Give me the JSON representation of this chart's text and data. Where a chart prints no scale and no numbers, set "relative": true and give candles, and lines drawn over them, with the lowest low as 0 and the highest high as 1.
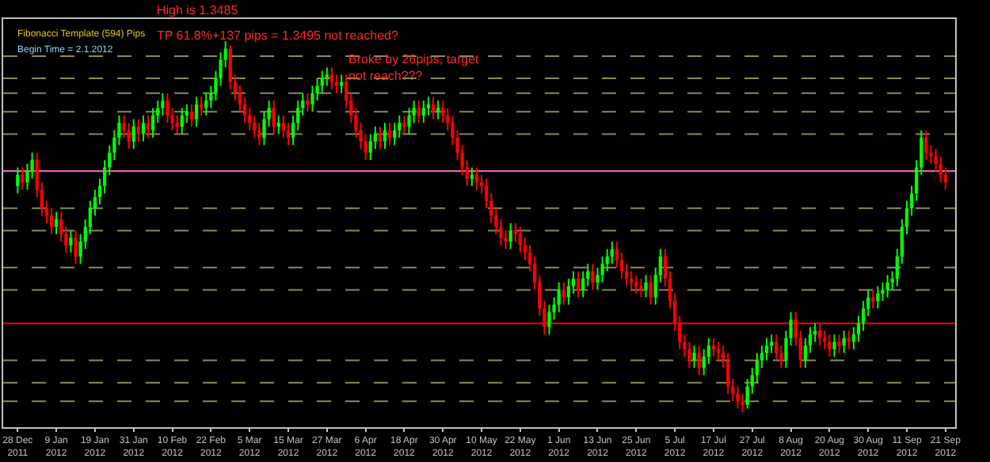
{
  "chart_data": {
    "type": "candlestick",
    "relative": true,
    "categories": [
      "28 Dec 2011",
      null,
      null,
      null,
      null,
      null,
      null,
      null,
      "9 Jan 2012",
      null,
      null,
      null,
      null,
      null,
      null,
      null,
      "19 Jan 2012",
      null,
      null,
      null,
      null,
      null,
      null,
      null,
      "31 Jan 2012",
      null,
      null,
      null,
      null,
      null,
      null,
      null,
      "10 Feb 2012",
      null,
      null,
      null,
      null,
      null,
      null,
      null,
      "22 Feb 2012",
      null,
      null,
      null,
      null,
      null,
      null,
      null,
      "5 Mar 2012",
      null,
      null,
      null,
      null,
      null,
      null,
      null,
      "15 Mar 2012",
      null,
      null,
      null,
      null,
      null,
      null,
      null,
      "27 Mar 2012",
      null,
      null,
      null,
      null,
      null,
      null,
      null,
      "6 Apr 2012",
      null,
      null,
      null,
      null,
      null,
      null,
      null,
      "18 Apr 2012",
      null,
      null,
      null,
      null,
      null,
      null,
      null,
      "30 Apr 2012",
      null,
      null,
      null,
      null,
      null,
      null,
      null,
      "10 May 2012",
      null,
      null,
      null,
      null,
      null,
      null,
      null,
      "22 May 2012",
      null,
      null,
      null,
      null,
      null,
      null,
      null,
      "1 Jun 2012",
      null,
      null,
      null,
      null,
      null,
      null,
      null,
      "13 Jun 2012",
      null,
      null,
      null,
      null,
      null,
      null,
      null,
      "25 Jun 2012",
      null,
      null,
      null,
      null,
      null,
      null,
      null,
      "5 Jul 2012",
      null,
      null,
      null,
      null,
      null,
      null,
      null,
      "17 Jul 2012",
      null,
      null,
      null,
      null,
      null,
      null,
      null,
      "27 Jul 2012",
      null,
      null,
      null,
      null,
      null,
      null,
      null,
      "8 Aug 2012",
      null,
      null,
      null,
      null,
      null,
      null,
      null,
      "20 Aug 2012",
      null,
      null,
      null,
      null,
      null,
      null,
      null,
      "30 Aug 2012",
      null,
      null,
      null,
      null,
      null,
      null,
      null,
      "11 Sep 2012",
      null,
      null,
      null,
      null,
      null,
      null,
      null,
      "21 Sep 2012"
    ],
    "ohlc": [
      [
        0.61,
        0.66,
        0.59,
        0.64
      ],
      [
        0.64,
        0.66,
        0.6,
        0.62
      ],
      [
        0.62,
        0.67,
        0.6,
        0.65
      ],
      [
        0.65,
        0.7,
        0.63,
        0.68
      ],
      [
        0.68,
        0.7,
        0.58,
        0.6
      ],
      [
        0.6,
        0.62,
        0.53,
        0.55
      ],
      [
        0.55,
        0.57,
        0.51,
        0.53
      ],
      [
        0.53,
        0.55,
        0.48,
        0.5
      ],
      [
        0.5,
        0.54,
        0.48,
        0.52
      ],
      [
        0.52,
        0.54,
        0.46,
        0.48
      ],
      [
        0.48,
        0.5,
        0.43,
        0.45
      ],
      [
        0.45,
        0.49,
        0.43,
        0.47
      ],
      [
        0.47,
        0.49,
        0.4,
        0.42
      ],
      [
        0.42,
        0.48,
        0.4,
        0.46
      ],
      [
        0.46,
        0.52,
        0.44,
        0.5
      ],
      [
        0.5,
        0.57,
        0.48,
        0.55
      ],
      [
        0.55,
        0.6,
        0.53,
        0.58
      ],
      [
        0.58,
        0.63,
        0.56,
        0.61
      ],
      [
        0.61,
        0.68,
        0.59,
        0.66
      ],
      [
        0.66,
        0.72,
        0.64,
        0.7
      ],
      [
        0.7,
        0.76,
        0.68,
        0.74
      ],
      [
        0.74,
        0.8,
        0.72,
        0.78
      ],
      [
        0.78,
        0.8,
        0.74,
        0.76
      ],
      [
        0.76,
        0.78,
        0.71,
        0.73
      ],
      [
        0.73,
        0.79,
        0.71,
        0.77
      ],
      [
        0.77,
        0.79,
        0.73,
        0.75
      ],
      [
        0.75,
        0.8,
        0.73,
        0.78
      ],
      [
        0.78,
        0.8,
        0.74,
        0.76
      ],
      [
        0.76,
        0.82,
        0.74,
        0.8
      ],
      [
        0.8,
        0.84,
        0.78,
        0.82
      ],
      [
        0.82,
        0.86,
        0.8,
        0.84
      ],
      [
        0.84,
        0.86,
        0.78,
        0.8
      ],
      [
        0.8,
        0.82,
        0.76,
        0.78
      ],
      [
        0.78,
        0.8,
        0.75,
        0.77
      ],
      [
        0.77,
        0.82,
        0.75,
        0.8
      ],
      [
        0.8,
        0.83,
        0.78,
        0.81
      ],
      [
        0.81,
        0.83,
        0.77,
        0.79
      ],
      [
        0.79,
        0.85,
        0.77,
        0.83
      ],
      [
        0.83,
        0.85,
        0.8,
        0.82
      ],
      [
        0.82,
        0.86,
        0.8,
        0.84
      ],
      [
        0.84,
        0.88,
        0.82,
        0.86
      ],
      [
        0.86,
        0.92,
        0.84,
        0.9
      ],
      [
        0.9,
        0.97,
        0.88,
        0.95
      ],
      [
        0.95,
        1,
        0.93,
        0.98
      ],
      [
        0.98,
        0.99,
        0.87,
        0.89
      ],
      [
        0.89,
        0.91,
        0.84,
        0.86
      ],
      [
        0.86,
        0.88,
        0.81,
        0.83
      ],
      [
        0.83,
        0.85,
        0.78,
        0.8
      ],
      [
        0.8,
        0.82,
        0.76,
        0.78
      ],
      [
        0.78,
        0.8,
        0.74,
        0.76
      ],
      [
        0.76,
        0.78,
        0.72,
        0.74
      ],
      [
        0.74,
        0.81,
        0.72,
        0.79
      ],
      [
        0.79,
        0.84,
        0.77,
        0.82
      ],
      [
        0.82,
        0.84,
        0.75,
        0.77
      ],
      [
        0.77,
        0.8,
        0.75,
        0.78
      ],
      [
        0.78,
        0.8,
        0.74,
        0.76
      ],
      [
        0.76,
        0.78,
        0.72,
        0.74
      ],
      [
        0.74,
        0.8,
        0.72,
        0.78
      ],
      [
        0.78,
        0.84,
        0.76,
        0.82
      ],
      [
        0.82,
        0.86,
        0.8,
        0.84
      ],
      [
        0.84,
        0.86,
        0.81,
        0.83
      ],
      [
        0.83,
        0.88,
        0.81,
        0.86
      ],
      [
        0.86,
        0.9,
        0.84,
        0.88
      ],
      [
        0.88,
        0.92,
        0.86,
        0.9
      ],
      [
        0.9,
        0.93,
        0.88,
        0.91
      ],
      [
        0.91,
        0.93,
        0.87,
        0.89
      ],
      [
        0.89,
        0.91,
        0.86,
        0.88
      ],
      [
        0.88,
        0.91,
        0.86,
        0.89
      ],
      [
        0.89,
        0.91,
        0.82,
        0.84
      ],
      [
        0.84,
        0.86,
        0.78,
        0.8
      ],
      [
        0.8,
        0.82,
        0.74,
        0.76
      ],
      [
        0.76,
        0.78,
        0.71,
        0.73
      ],
      [
        0.73,
        0.75,
        0.68,
        0.7
      ],
      [
        0.7,
        0.75,
        0.68,
        0.73
      ],
      [
        0.73,
        0.77,
        0.71,
        0.75
      ],
      [
        0.75,
        0.77,
        0.71,
        0.73
      ],
      [
        0.73,
        0.78,
        0.71,
        0.76
      ],
      [
        0.76,
        0.78,
        0.72,
        0.74
      ],
      [
        0.74,
        0.78,
        0.72,
        0.76
      ],
      [
        0.76,
        0.8,
        0.74,
        0.78
      ],
      [
        0.78,
        0.8,
        0.75,
        0.77
      ],
      [
        0.77,
        0.82,
        0.75,
        0.8
      ],
      [
        0.8,
        0.84,
        0.78,
        0.82
      ],
      [
        0.82,
        0.84,
        0.78,
        0.8
      ],
      [
        0.8,
        0.84,
        0.78,
        0.82
      ],
      [
        0.82,
        0.85,
        0.8,
        0.83
      ],
      [
        0.83,
        0.85,
        0.79,
        0.81
      ],
      [
        0.81,
        0.84,
        0.79,
        0.82
      ],
      [
        0.82,
        0.84,
        0.78,
        0.8
      ],
      [
        0.8,
        0.82,
        0.76,
        0.78
      ],
      [
        0.78,
        0.8,
        0.72,
        0.74
      ],
      [
        0.74,
        0.76,
        0.68,
        0.7
      ],
      [
        0.7,
        0.72,
        0.64,
        0.66
      ],
      [
        0.66,
        0.68,
        0.61,
        0.63
      ],
      [
        0.63,
        0.66,
        0.61,
        0.64
      ],
      [
        0.64,
        0.66,
        0.6,
        0.62
      ],
      [
        0.62,
        0.64,
        0.59,
        0.61
      ],
      [
        0.61,
        0.63,
        0.55,
        0.57
      ],
      [
        0.57,
        0.59,
        0.51,
        0.53
      ],
      [
        0.53,
        0.55,
        0.48,
        0.5
      ],
      [
        0.5,
        0.52,
        0.45,
        0.47
      ],
      [
        0.47,
        0.49,
        0.44,
        0.46
      ],
      [
        0.46,
        0.51,
        0.44,
        0.49
      ],
      [
        0.49,
        0.51,
        0.46,
        0.48
      ],
      [
        0.48,
        0.5,
        0.43,
        0.45
      ],
      [
        0.45,
        0.47,
        0.41,
        0.43
      ],
      [
        0.43,
        0.45,
        0.38,
        0.4
      ],
      [
        0.4,
        0.42,
        0.33,
        0.35
      ],
      [
        0.35,
        0.37,
        0.26,
        0.28
      ],
      [
        0.28,
        0.3,
        0.21,
        0.23
      ],
      [
        0.23,
        0.29,
        0.21,
        0.27
      ],
      [
        0.27,
        0.31,
        0.25,
        0.29
      ],
      [
        0.29,
        0.35,
        0.27,
        0.33
      ],
      [
        0.33,
        0.35,
        0.29,
        0.31
      ],
      [
        0.31,
        0.36,
        0.29,
        0.34
      ],
      [
        0.34,
        0.38,
        0.32,
        0.36
      ],
      [
        0.36,
        0.38,
        0.31,
        0.33
      ],
      [
        0.33,
        0.38,
        0.31,
        0.36
      ],
      [
        0.36,
        0.4,
        0.34,
        0.38
      ],
      [
        0.38,
        0.4,
        0.33,
        0.35
      ],
      [
        0.35,
        0.39,
        0.33,
        0.37
      ],
      [
        0.37,
        0.42,
        0.35,
        0.4
      ],
      [
        0.4,
        0.44,
        0.38,
        0.42
      ],
      [
        0.42,
        0.46,
        0.4,
        0.44
      ],
      [
        0.44,
        0.46,
        0.39,
        0.41
      ],
      [
        0.41,
        0.43,
        0.36,
        0.38
      ],
      [
        0.38,
        0.4,
        0.34,
        0.36
      ],
      [
        0.36,
        0.38,
        0.33,
        0.35
      ],
      [
        0.35,
        0.37,
        0.32,
        0.34
      ],
      [
        0.34,
        0.36,
        0.31,
        0.33
      ],
      [
        0.33,
        0.37,
        0.31,
        0.35
      ],
      [
        0.35,
        0.37,
        0.29,
        0.31
      ],
      [
        0.31,
        0.39,
        0.29,
        0.37
      ],
      [
        0.37,
        0.44,
        0.35,
        0.42
      ],
      [
        0.42,
        0.44,
        0.34,
        0.36
      ],
      [
        0.36,
        0.38,
        0.28,
        0.3
      ],
      [
        0.3,
        0.32,
        0.22,
        0.24
      ],
      [
        0.24,
        0.26,
        0.17,
        0.19
      ],
      [
        0.19,
        0.21,
        0.15,
        0.17
      ],
      [
        0.17,
        0.19,
        0.12,
        0.14
      ],
      [
        0.14,
        0.18,
        0.12,
        0.16
      ],
      [
        0.16,
        0.18,
        0.1,
        0.12
      ],
      [
        0.12,
        0.17,
        0.1,
        0.15
      ],
      [
        0.15,
        0.2,
        0.13,
        0.18
      ],
      [
        0.18,
        0.2,
        0.15,
        0.17
      ],
      [
        0.17,
        0.19,
        0.14,
        0.16
      ],
      [
        0.16,
        0.18,
        0.12,
        0.14
      ],
      [
        0.14,
        0.16,
        0.05,
        0.07
      ],
      [
        0.07,
        0.09,
        0.03,
        0.05
      ],
      [
        0.05,
        0.07,
        0.01,
        0.03
      ],
      [
        0.03,
        0.05,
        0,
        0.02
      ],
      [
        0.02,
        0.09,
        0.01,
        0.07
      ],
      [
        0.07,
        0.12,
        0.05,
        0.1
      ],
      [
        0.1,
        0.16,
        0.08,
        0.14
      ],
      [
        0.14,
        0.18,
        0.12,
        0.16
      ],
      [
        0.16,
        0.2,
        0.14,
        0.18
      ],
      [
        0.18,
        0.21,
        0.16,
        0.19
      ],
      [
        0.19,
        0.21,
        0.14,
        0.16
      ],
      [
        0.16,
        0.18,
        0.12,
        0.14
      ],
      [
        0.14,
        0.22,
        0.12,
        0.2
      ],
      [
        0.2,
        0.27,
        0.18,
        0.25
      ],
      [
        0.25,
        0.27,
        0.18,
        0.2
      ],
      [
        0.2,
        0.22,
        0.12,
        0.14
      ],
      [
        0.14,
        0.2,
        0.12,
        0.18
      ],
      [
        0.18,
        0.23,
        0.16,
        0.21
      ],
      [
        0.21,
        0.24,
        0.19,
        0.22
      ],
      [
        0.22,
        0.24,
        0.18,
        0.2
      ],
      [
        0.2,
        0.22,
        0.17,
        0.19
      ],
      [
        0.19,
        0.21,
        0.15,
        0.17
      ],
      [
        0.17,
        0.21,
        0.15,
        0.19
      ],
      [
        0.19,
        0.21,
        0.16,
        0.18
      ],
      [
        0.18,
        0.22,
        0.16,
        0.2
      ],
      [
        0.2,
        0.22,
        0.17,
        0.19
      ],
      [
        0.19,
        0.23,
        0.17,
        0.21
      ],
      [
        0.21,
        0.26,
        0.19,
        0.24
      ],
      [
        0.24,
        0.3,
        0.22,
        0.28
      ],
      [
        0.28,
        0.33,
        0.26,
        0.31
      ],
      [
        0.31,
        0.33,
        0.28,
        0.3
      ],
      [
        0.3,
        0.34,
        0.28,
        0.32
      ],
      [
        0.32,
        0.35,
        0.3,
        0.33
      ],
      [
        0.33,
        0.37,
        0.31,
        0.35
      ],
      [
        0.35,
        0.38,
        0.33,
        0.36
      ],
      [
        0.36,
        0.44,
        0.34,
        0.42
      ],
      [
        0.42,
        0.52,
        0.4,
        0.5
      ],
      [
        0.5,
        0.57,
        0.48,
        0.55
      ],
      [
        0.55,
        0.61,
        0.53,
        0.59
      ],
      [
        0.59,
        0.68,
        0.57,
        0.66
      ],
      [
        0.66,
        0.76,
        0.64,
        0.74
      ],
      [
        0.74,
        0.76,
        0.68,
        0.7
      ],
      [
        0.7,
        0.72,
        0.67,
        0.69
      ],
      [
        0.69,
        0.71,
        0.65,
        0.67
      ],
      [
        0.67,
        0.69,
        0.62,
        0.64
      ],
      [
        0.64,
        0.66,
        0.6,
        0.62
      ]
    ],
    "ref_lines": [
      {
        "axis": "y",
        "value": 0.96,
        "color": "#8c8a5a",
        "line_style": "dashed"
      },
      {
        "axis": "y",
        "value": 0.9,
        "color": "#8c8a5a",
        "line_style": "dashed"
      },
      {
        "axis": "y",
        "value": 0.86,
        "color": "#8c8a5a",
        "line_style": "dashed"
      },
      {
        "axis": "y",
        "value": 0.81,
        "color": "#8c8a5a",
        "line_style": "dashed"
      },
      {
        "axis": "y",
        "value": 0.75,
        "color": "#8c8a5a",
        "line_style": "dashed"
      },
      {
        "axis": "y",
        "value": 0.65,
        "color": "#ff6ec7",
        "line_style": "solid"
      },
      {
        "axis": "y",
        "value": 0.55,
        "color": "#8c8a5a",
        "line_style": "dashed"
      },
      {
        "axis": "y",
        "value": 0.49,
        "color": "#8c8a5a",
        "line_style": "dashed"
      },
      {
        "axis": "y",
        "value": 0.39,
        "color": "#8c8a5a",
        "line_style": "dashed"
      },
      {
        "axis": "y",
        "value": 0.33,
        "color": "#8c8a5a",
        "line_style": "dashed"
      },
      {
        "axis": "y",
        "value": 0.24,
        "color": "#ff0000",
        "line_style": "solid"
      },
      {
        "axis": "y",
        "value": 0.14,
        "color": "#8c8a5a",
        "line_style": "dashed"
      },
      {
        "axis": "y",
        "value": 0.08,
        "color": "#8c8a5a",
        "line_style": "dashed"
      },
      {
        "axis": "y",
        "value": 0.03,
        "color": "#8c8a5a",
        "line_style": "dashed"
      }
    ],
    "annotations": [
      "Fibonacci Template (594) Pips",
      "Begin Time = 2.1.2012",
      "High is 1.3485",
      "TP 61.8%+137 pips = 1.3495 not reached?",
      "Broke by 26pips, target\nnot reach???"
    ]
  }
}
